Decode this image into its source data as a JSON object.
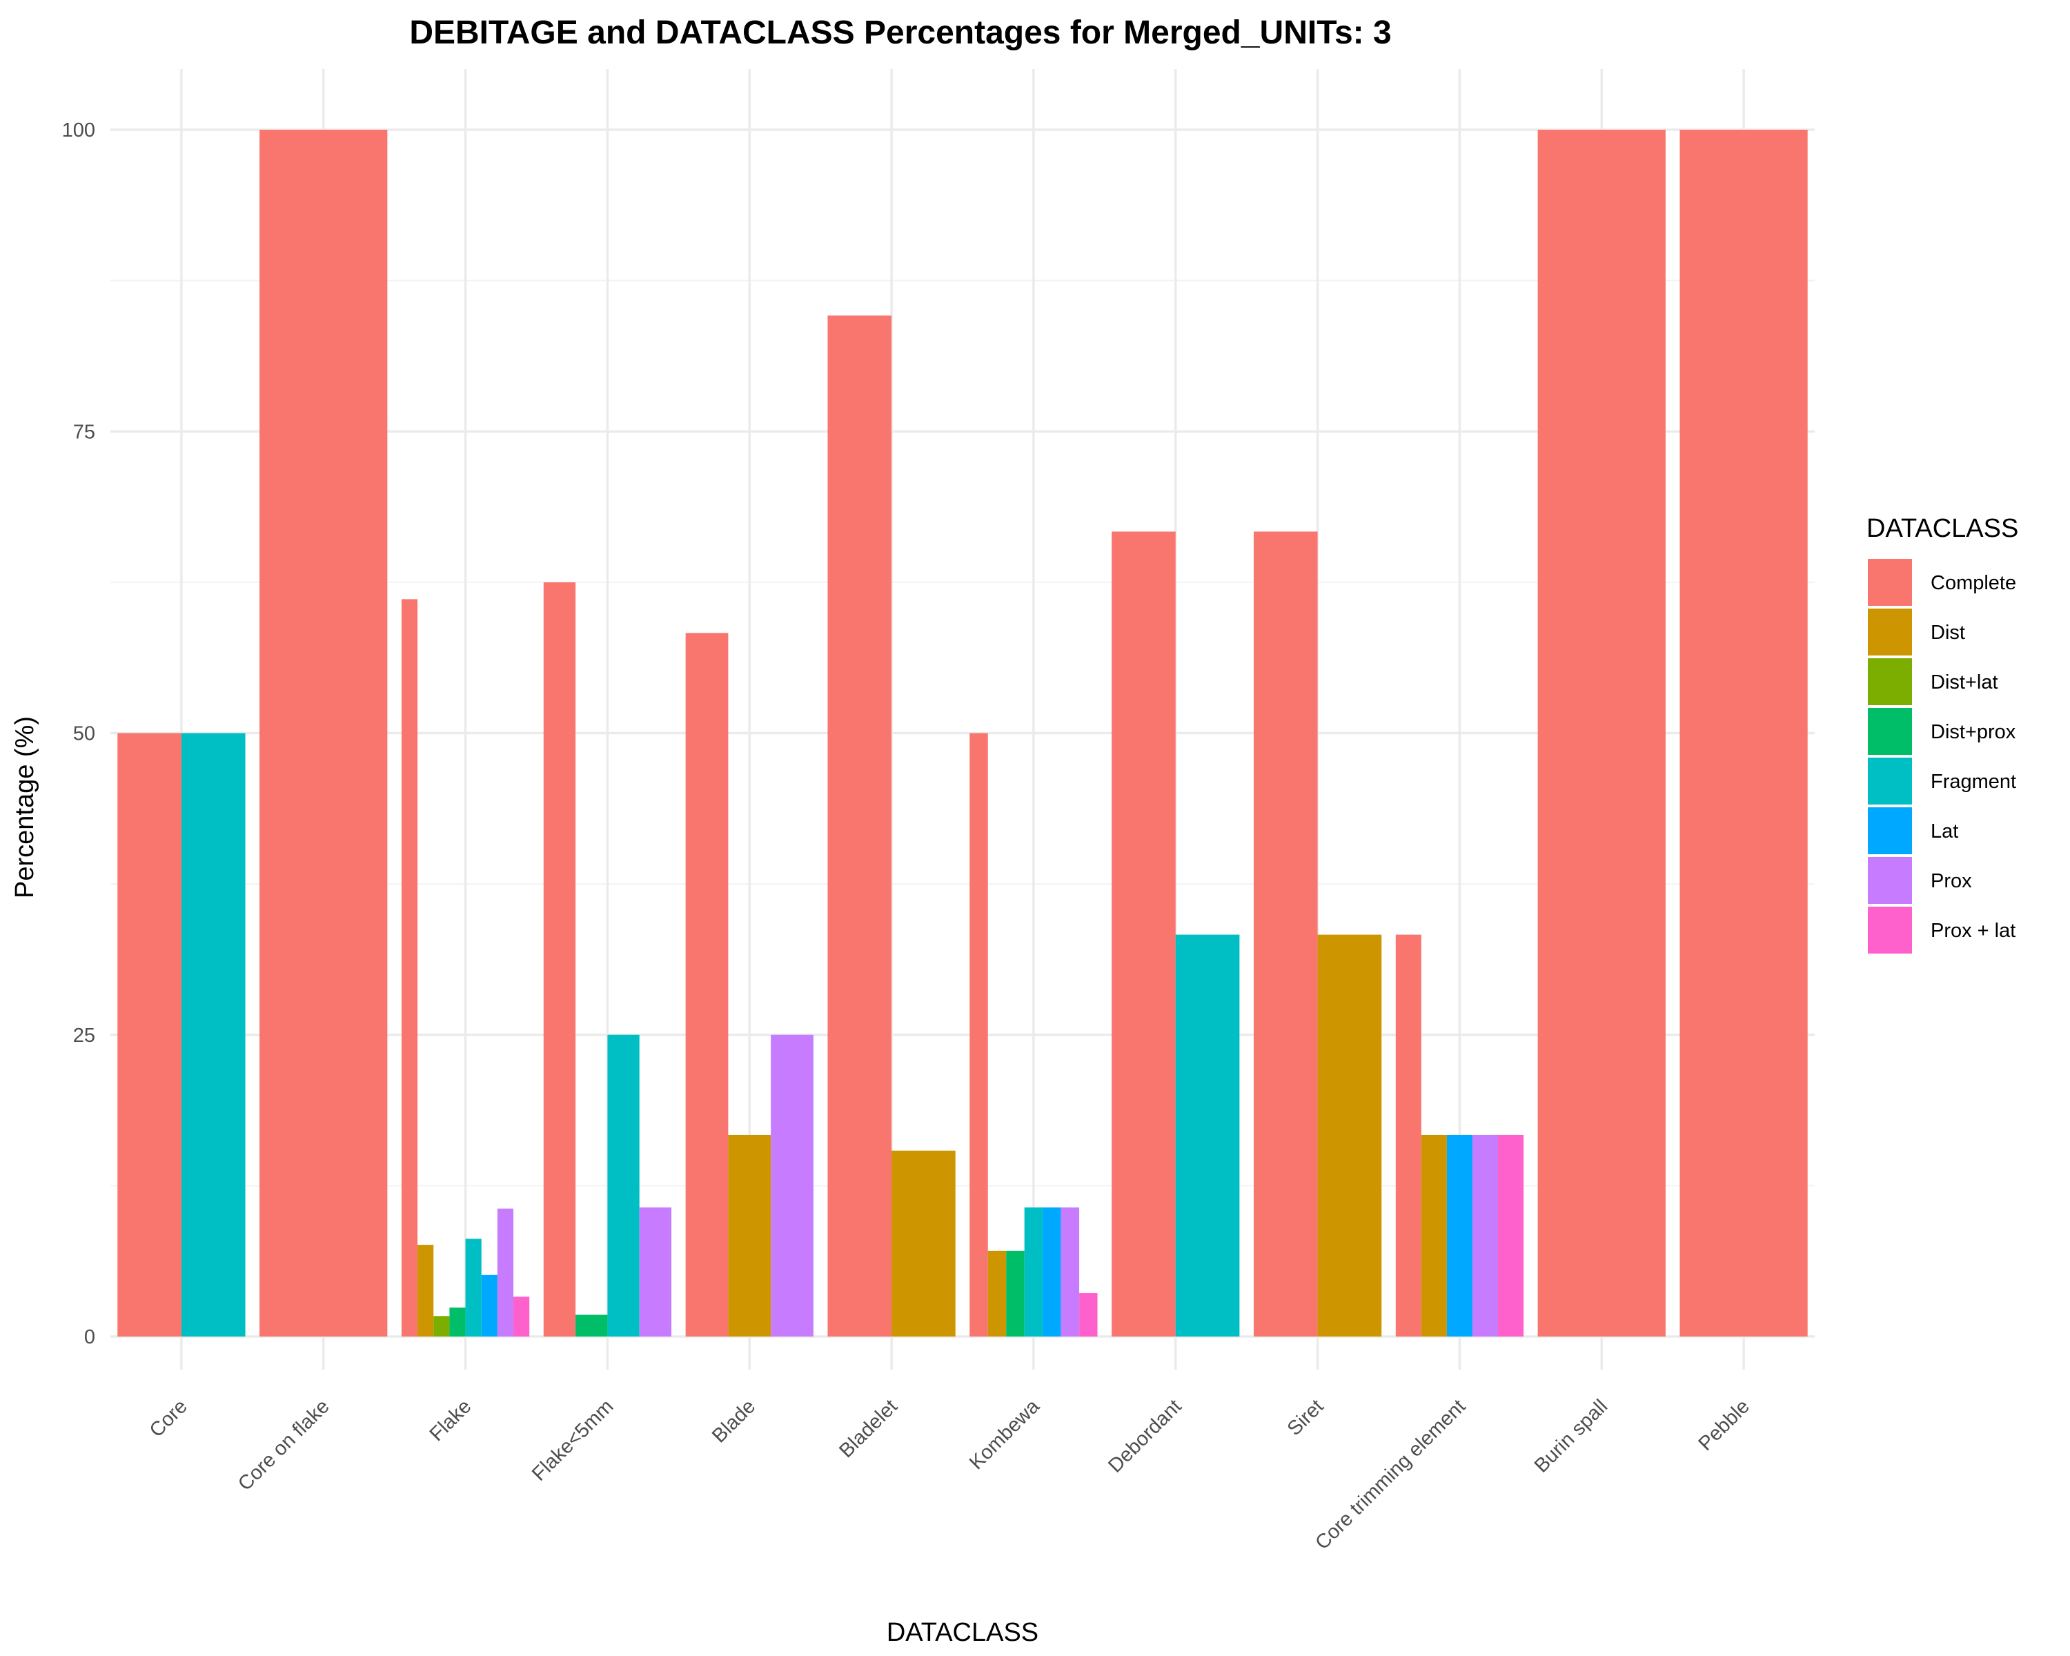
{
  "chart_data": {
    "type": "bar",
    "title": "DEBITAGE and DATACLASS Percentages for Merged_UNITs: 3",
    "xlabel": "DATACLASS",
    "ylabel": "Percentage (%)",
    "ylim": [
      0,
      100
    ],
    "yticks": [
      0,
      25,
      50,
      75,
      100
    ],
    "grid": true,
    "legend": {
      "title": "DATACLASS",
      "position": "right"
    },
    "classes": [
      {
        "name": "Complete",
        "color": "#F8766D"
      },
      {
        "name": "Dist",
        "color": "#CD9600"
      },
      {
        "name": "Dist+lat",
        "color": "#7CAE00"
      },
      {
        "name": "Dist+prox",
        "color": "#00BE67"
      },
      {
        "name": "Fragment",
        "color": "#00BFC4"
      },
      {
        "name": "Lat",
        "color": "#00A9FF"
      },
      {
        "name": "Prox",
        "color": "#C77CFF"
      },
      {
        "name": "Prox + lat",
        "color": "#FF61CC"
      }
    ],
    "categories": [
      {
        "label": "Core",
        "bars": [
          {
            "class": "Complete",
            "value": 50
          },
          {
            "class": "Fragment",
            "value": 50
          }
        ]
      },
      {
        "label": "Core on flake",
        "bars": [
          {
            "class": "Complete",
            "value": 100
          }
        ]
      },
      {
        "label": "Flake",
        "bars": [
          {
            "class": "Complete",
            "value": 61.1
          },
          {
            "class": "Dist",
            "value": 7.6
          },
          {
            "class": "Dist+lat",
            "value": 1.7
          },
          {
            "class": "Dist+prox",
            "value": 2.4
          },
          {
            "class": "Fragment",
            "value": 8.1
          },
          {
            "class": "Lat",
            "value": 5.1
          },
          {
            "class": "Prox",
            "value": 10.6
          },
          {
            "class": "Prox + lat",
            "value": 3.3
          }
        ]
      },
      {
        "label": "Flake<5mm",
        "bars": [
          {
            "class": "Complete",
            "value": 62.5
          },
          {
            "class": "Dist+prox",
            "value": 1.8
          },
          {
            "class": "Fragment",
            "value": 25
          },
          {
            "class": "Prox",
            "value": 10.7
          }
        ]
      },
      {
        "label": "Blade",
        "bars": [
          {
            "class": "Complete",
            "value": 58.3
          },
          {
            "class": "Dist",
            "value": 16.7
          },
          {
            "class": "Prox",
            "value": 25
          }
        ]
      },
      {
        "label": "Bladelet",
        "bars": [
          {
            "class": "Complete",
            "value": 84.6
          },
          {
            "class": "Dist",
            "value": 15.4
          }
        ]
      },
      {
        "label": "Kombewa",
        "bars": [
          {
            "class": "Complete",
            "value": 50
          },
          {
            "class": "Dist",
            "value": 7.1
          },
          {
            "class": "Dist+prox",
            "value": 7.1
          },
          {
            "class": "Fragment",
            "value": 10.7
          },
          {
            "class": "Lat",
            "value": 10.7
          },
          {
            "class": "Prox",
            "value": 10.7
          },
          {
            "class": "Prox + lat",
            "value": 3.6
          }
        ]
      },
      {
        "label": "Debordant",
        "bars": [
          {
            "class": "Complete",
            "value": 66.7
          },
          {
            "class": "Fragment",
            "value": 33.3
          }
        ]
      },
      {
        "label": "Siret",
        "bars": [
          {
            "class": "Complete",
            "value": 66.7
          },
          {
            "class": "Dist",
            "value": 33.3
          }
        ]
      },
      {
        "label": "Core trimming element",
        "bars": [
          {
            "class": "Complete",
            "value": 33.3
          },
          {
            "class": "Dist",
            "value": 16.7
          },
          {
            "class": "Lat",
            "value": 16.7
          },
          {
            "class": "Prox",
            "value": 16.7
          },
          {
            "class": "Prox + lat",
            "value": 16.7
          }
        ]
      },
      {
        "label": "Burin spall",
        "bars": [
          {
            "class": "Complete",
            "value": 100
          }
        ]
      },
      {
        "label": "Pebble",
        "bars": [
          {
            "class": "Complete",
            "value": 100
          }
        ]
      }
    ]
  }
}
